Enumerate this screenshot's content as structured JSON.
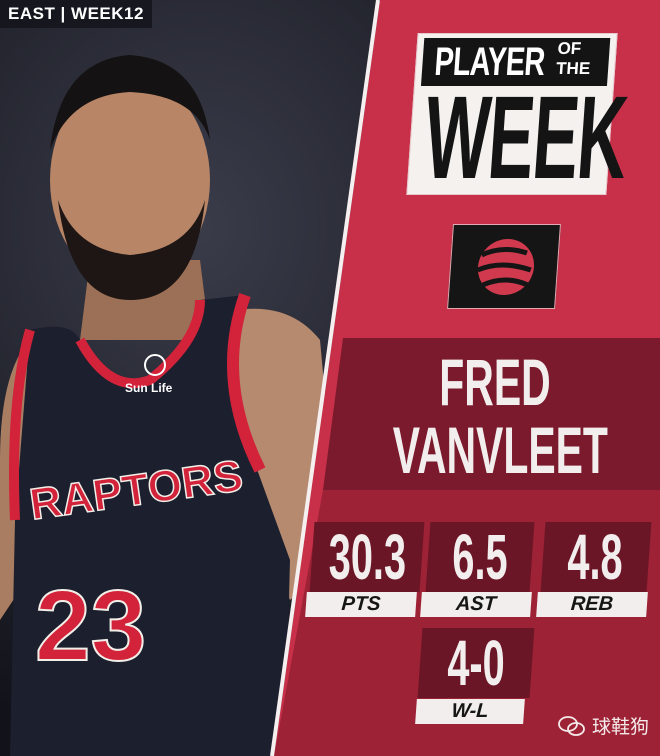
{
  "header_tag": "EAST | WEEK12",
  "title": {
    "line1": "PLAYER",
    "of": "OF",
    "the": "THE",
    "line2": "WEEK"
  },
  "team_logo": {
    "icon": "raptors-claw-basketball-icon"
  },
  "player": {
    "first_name": "FRED",
    "last_name": "VANVLEET"
  },
  "jersey": {
    "team_text": "RAPTORS",
    "number": "23",
    "sponsor": "Sun Life"
  },
  "stats": [
    {
      "value": "30.3",
      "label": "PTS"
    },
    {
      "value": "6.5",
      "label": "AST"
    },
    {
      "value": "4.8",
      "label": "REB"
    },
    {
      "value": "4-0",
      "label": "W-L"
    }
  ],
  "watermark": {
    "icon": "wechat-icon",
    "text": "球鞋狗"
  },
  "colors": {
    "panel_red": "#c8304a",
    "band_dark": "#7a1a2c",
    "box_dark": "#6b1626",
    "trim_red": "#d2233a"
  }
}
